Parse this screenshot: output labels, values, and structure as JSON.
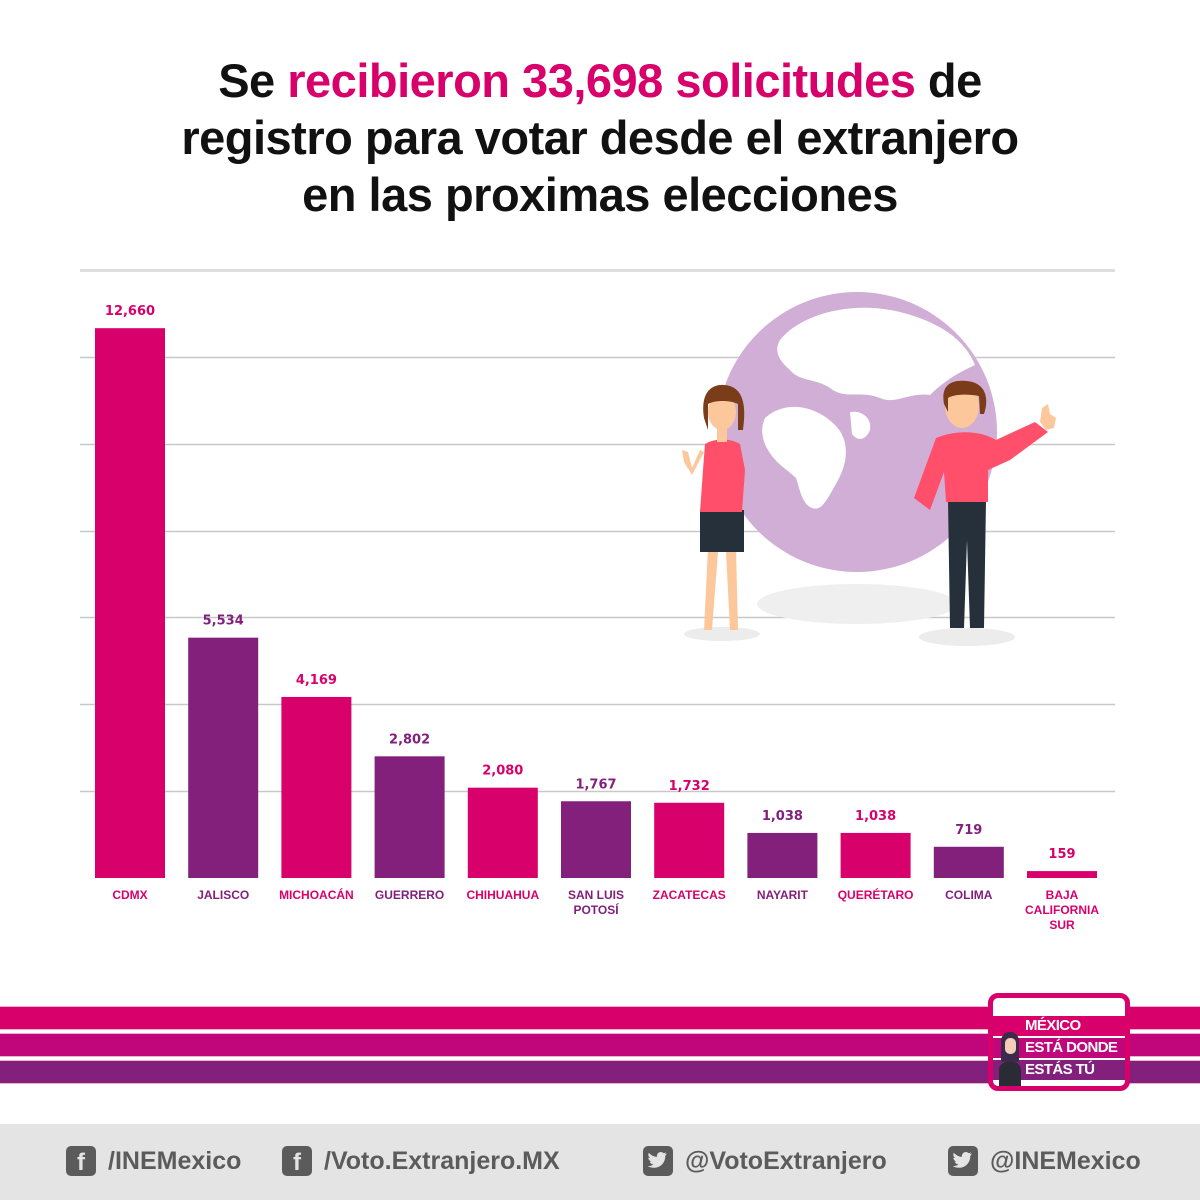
{
  "headline": {
    "line1_pre": "Se ",
    "line1_highlight": "recibieron 33,698 solicitudes",
    "line1_post": " de",
    "line2": "registro para votar desde el extranjero",
    "line3": "en las proximas elecciones"
  },
  "colors": {
    "pink": "#d8006b",
    "magenta": "#c0067a",
    "purple": "#82207c",
    "globe": "#d0aed6",
    "gridline": "#c8c8c8",
    "footer_bg": "#e4e4e4",
    "footer_text": "#5b5b5b"
  },
  "chart_data": {
    "type": "bar",
    "title": "Se recibieron 33,698 solicitudes de registro para votar desde el extranjero en las proximas elecciones",
    "xlabel": "",
    "ylabel": "",
    "ylim": [
      0,
      14000
    ],
    "grid": true,
    "gridline_step": 2000,
    "categories": [
      "CDMX",
      "JALISCO",
      "MICHOACÁN",
      "GUERRERO",
      "CHIHUAHUA",
      "SAN LUIS POTOSÍ",
      "ZACATECAS",
      "NAYARIT",
      "QUERÉTARO",
      "COLIMA",
      "BAJA CALIFORNIA SUR"
    ],
    "category_lines": [
      [
        "CDMX"
      ],
      [
        "JALISCO"
      ],
      [
        "MICHOACÁN"
      ],
      [
        "GUERRERO"
      ],
      [
        "CHIHUAHUA"
      ],
      [
        "SAN LUIS",
        "POTOSÍ"
      ],
      [
        "ZACATECAS"
      ],
      [
        "NAYARIT"
      ],
      [
        "QUERÉTARO"
      ],
      [
        "COLIMA"
      ],
      [
        "BAJA",
        "CALIFORNIA",
        "SUR"
      ]
    ],
    "values": [
      12660,
      5534,
      4169,
      2802,
      2080,
      1767,
      1732,
      1038,
      1038,
      719,
      159
    ],
    "value_labels": [
      "12,660",
      "5,534",
      "4,169",
      "2,802",
      "2,080",
      "1,767",
      "1,732",
      "1,038",
      "1,038",
      "719",
      "159"
    ],
    "bar_colors": [
      "#d8006b",
      "#82207c",
      "#d8006b",
      "#82207c",
      "#d8006b",
      "#82207c",
      "#d8006b",
      "#82207c",
      "#d8006b",
      "#82207c",
      "#d8006b"
    ]
  },
  "logo": {
    "line1": "MÉXICO",
    "line2": "ESTÁ DONDE",
    "line3": "ESTÁS TÚ"
  },
  "footer": {
    "links": [
      {
        "icon": "facebook-icon",
        "label": "/INEMexico"
      },
      {
        "icon": "facebook-icon",
        "label": "/Voto.Extranjero.MX"
      },
      {
        "icon": "twitter-icon",
        "label": "@VotoExtranjero"
      },
      {
        "icon": "twitter-icon",
        "label": "@INEMexico"
      }
    ]
  }
}
